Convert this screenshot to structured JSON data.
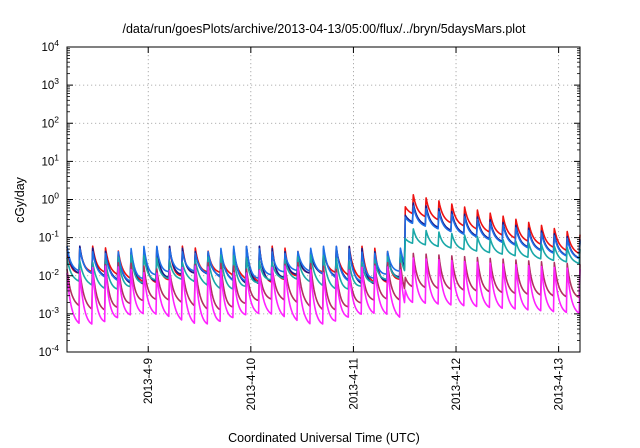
{
  "chart_data": {
    "type": "line",
    "title": "/data/run/goesPlots/archive/2013-04-13/05:00/flux/../bryn/5daysMars.plot",
    "xlabel": "Coordinated Universal Time (UTC)",
    "ylabel": "cGy/day",
    "yscale": "log",
    "ylim": [
      0.0001,
      10000
    ],
    "y_ticks": [
      {
        "base": "10",
        "exp": "-4",
        "value": 0.0001
      },
      {
        "base": "10",
        "exp": "-3",
        "value": 0.001
      },
      {
        "base": "10",
        "exp": "-2",
        "value": 0.01
      },
      {
        "base": "10",
        "exp": "-1",
        "value": 0.1
      },
      {
        "base": "10",
        "exp": "0",
        "value": 1
      },
      {
        "base": "10",
        "exp": "1",
        "value": 10
      },
      {
        "base": "10",
        "exp": "2",
        "value": 100
      },
      {
        "base": "10",
        "exp": "3",
        "value": 1000
      },
      {
        "base": "10",
        "exp": "4",
        "value": 10000
      }
    ],
    "xlim": [
      "2013-04-08 05:00",
      "2013-04-13 05:00"
    ],
    "x_ticks": [
      "2013-4-9",
      "2013-4-10",
      "2013-4-11",
      "2013-4-12",
      "2013-4-13"
    ],
    "grid": true,
    "legend": "none",
    "series": [
      {
        "color": "#ee1111",
        "cycles_per_day": 8,
        "before_event_peak": 0.06,
        "before_event_trough": 0.012,
        "event_start": "2013-04-11 12:00",
        "event_peak": 1.5,
        "end_peak": 0.12,
        "after_trough_ratio": 0.3
      },
      {
        "color": "#1a1a8c",
        "cycles_per_day": 8,
        "before_event_peak": 0.06,
        "before_event_trough": 0.011,
        "event_start": "2013-04-11 12:00",
        "event_peak": 0.9,
        "end_peak": 0.09,
        "after_trough_ratio": 0.3
      },
      {
        "color": "#1e6fe6",
        "cycles_per_day": 8,
        "before_event_peak": 0.06,
        "before_event_trough": 0.013,
        "event_start": "2013-04-11 12:00",
        "event_peak": 0.75,
        "end_peak": 0.08,
        "after_trough_ratio": 0.33
      },
      {
        "color": "#1aa8a8",
        "cycles_per_day": 8,
        "before_event_peak": 0.035,
        "before_event_trough": 0.008,
        "event_start": "2013-04-11 12:00",
        "event_peak": 0.18,
        "end_peak": 0.05,
        "after_trough_ratio": 0.4
      },
      {
        "color": "#b03060",
        "cycles_per_day": 8,
        "before_event_peak": 0.022,
        "before_event_trough": 0.0022,
        "event_start": "2013-04-11 12:00",
        "event_peak": 0.04,
        "end_peak": 0.02,
        "after_trough_ratio": 0.12
      },
      {
        "color": "#ff22ff",
        "cycles_per_day": 8,
        "before_event_peak": 0.018,
        "before_event_trough": 0.0009,
        "event_start": "2013-04-11 12:00",
        "event_peak": 0.03,
        "end_peak": 0.015,
        "after_trough_ratio": 0.06
      }
    ]
  }
}
